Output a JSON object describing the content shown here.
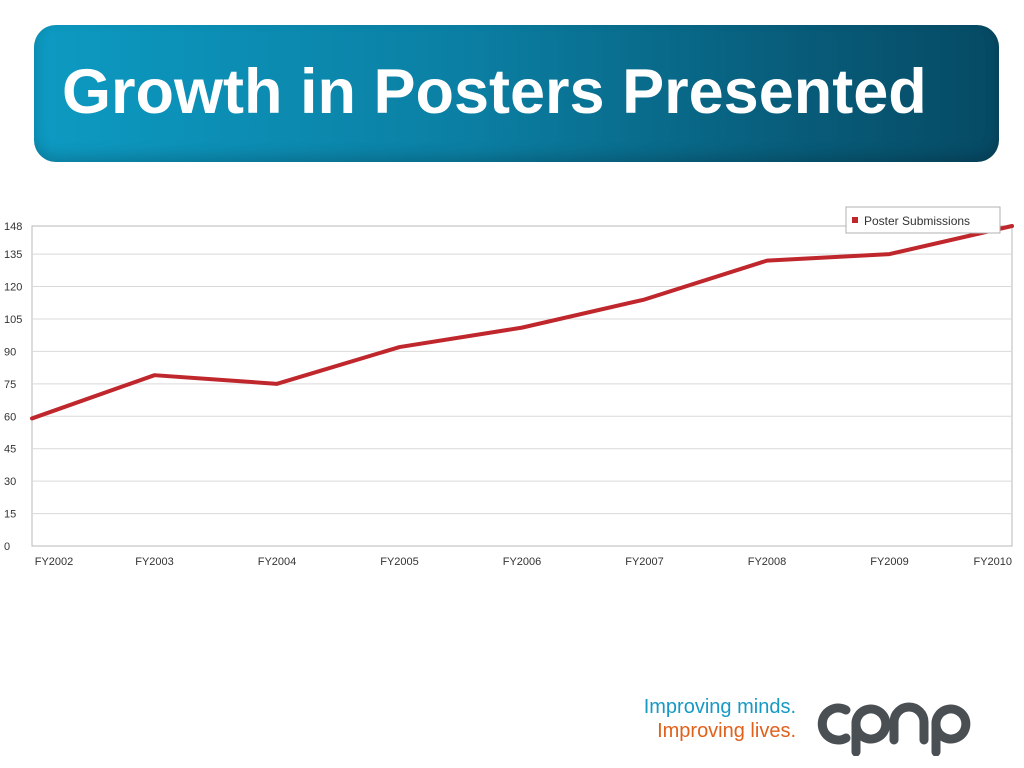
{
  "slide": {
    "title": "Growth in Posters Presented",
    "tagline_line1": "Improving minds.",
    "tagline_line2": "Improving lives.",
    "logo_text": "cpnp",
    "colors": {
      "banner_start": "#0d9ac2",
      "banner_end": "#064a64",
      "tagline_blue": "#1799c6",
      "tagline_orange": "#e0611b",
      "logo_gray": "#4a4f54"
    }
  },
  "chart_data": {
    "type": "line",
    "title": "",
    "xlabel": "",
    "ylabel": "",
    "categories": [
      "FY2002",
      "FY2003",
      "FY2004",
      "FY2005",
      "FY2006",
      "FY2007",
      "FY2008",
      "FY2009",
      "FY2010"
    ],
    "series": [
      {
        "name": "Poster Submissions",
        "color": "#c0272d",
        "values": [
          59,
          79,
          75,
          92,
          101,
          114,
          132,
          135,
          148
        ]
      }
    ],
    "ylim": [
      0,
      148
    ],
    "yticks": [
      0,
      15,
      30,
      45,
      60,
      75,
      90,
      105,
      120,
      135,
      148
    ],
    "grid": true,
    "legend": "top-right"
  }
}
